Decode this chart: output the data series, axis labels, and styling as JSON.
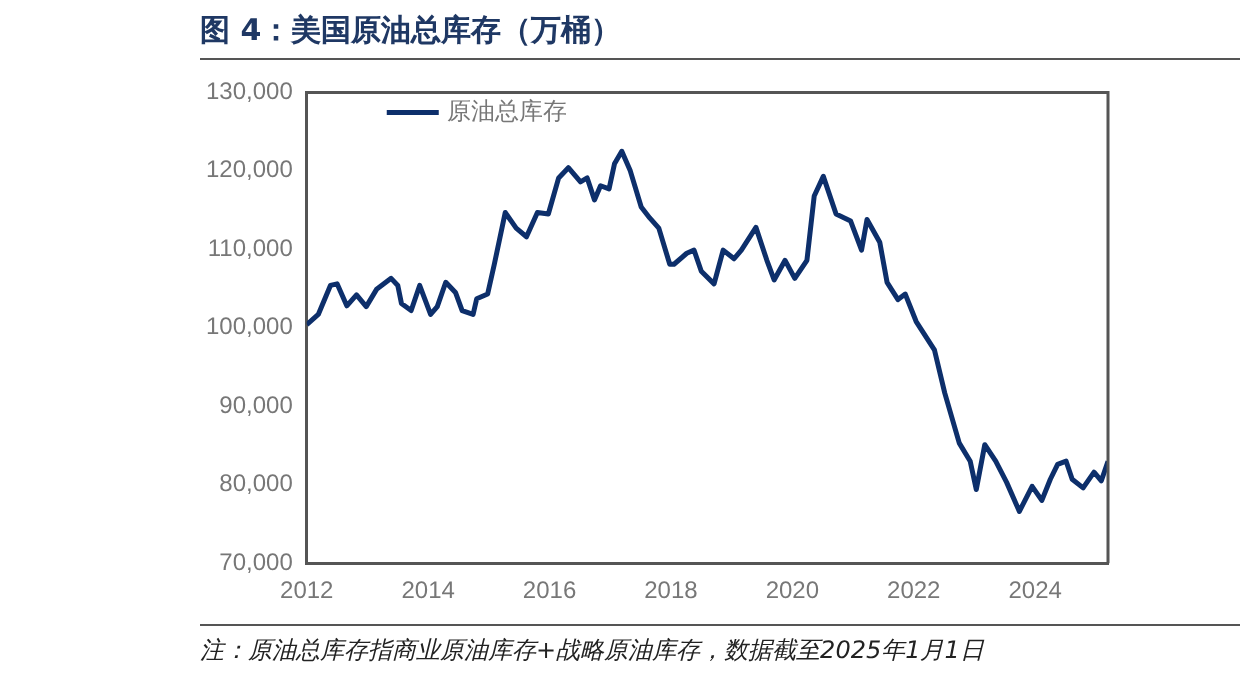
{
  "chart_data": {
    "type": "line",
    "title": "图 4：美国原油总库存（万桶）",
    "annotations": [
      "注：原油总库存指商业原油库存+战略原油库存，数据截至2025年1月1日"
    ],
    "xlim": [
      2012,
      2025.2
    ],
    "xticks": [
      2012,
      2014,
      2016,
      2018,
      2020,
      2022,
      2024
    ],
    "ylim": [
      70000,
      130000
    ],
    "yticks": [
      {
        "value": 70000,
        "label": "70,000"
      },
      {
        "value": 80000,
        "label": "80,000"
      },
      {
        "value": 90000,
        "label": "90,000"
      },
      {
        "value": 100000,
        "label": "100,000"
      },
      {
        "value": 110000,
        "label": "110,000"
      },
      {
        "value": 120000,
        "label": "120,000"
      },
      {
        "value": 130000,
        "label": "130,000"
      }
    ],
    "grid": false,
    "legend": "top left",
    "marker": "none",
    "line_style": "solid",
    "series": [
      {
        "name": "原油总库存",
        "color": "#0d2f6b",
        "x": [
          2012.0,
          2012.19,
          2012.39,
          2012.5,
          2012.66,
          2012.82,
          2012.98,
          2013.15,
          2013.39,
          2013.5,
          2013.56,
          2013.72,
          2013.86,
          2014.04,
          2014.15,
          2014.29,
          2014.45,
          2014.56,
          2014.74,
          2014.8,
          2014.98,
          2015.09,
          2015.27,
          2015.45,
          2015.62,
          2015.8,
          2015.98,
          2016.15,
          2016.31,
          2016.51,
          2016.62,
          2016.74,
          2016.84,
          2016.98,
          2017.07,
          2017.19,
          2017.33,
          2017.51,
          2017.65,
          2017.8,
          2017.98,
          2018.05,
          2018.26,
          2018.38,
          2018.5,
          2018.71,
          2018.86,
          2019.04,
          2019.16,
          2019.4,
          2019.58,
          2019.7,
          2019.88,
          2020.04,
          2020.24,
          2020.36,
          2020.51,
          2020.72,
          2020.96,
          2021.14,
          2021.23,
          2021.44,
          2021.56,
          2021.74,
          2021.86,
          2022.04,
          2022.34,
          2022.51,
          2022.75,
          2022.93,
          2023.03,
          2023.17,
          2023.35,
          2023.53,
          2023.74,
          2023.95,
          2024.11,
          2024.25,
          2024.37,
          2024.51,
          2024.61,
          2024.79,
          2024.97,
          2025.09,
          2025.2
        ],
        "values": [
          100400,
          101700,
          105400,
          105600,
          102800,
          104200,
          102700,
          104900,
          106300,
          105400,
          103100,
          102200,
          105400,
          101700,
          102700,
          105800,
          104500,
          102200,
          101700,
          103700,
          104300,
          108100,
          114700,
          112700,
          111600,
          114700,
          114500,
          119100,
          120400,
          118600,
          119100,
          116300,
          118100,
          117700,
          120900,
          122500,
          120000,
          115400,
          114000,
          112700,
          108100,
          108100,
          109500,
          109900,
          107200,
          105600,
          109900,
          108800,
          109900,
          112800,
          108600,
          106100,
          108600,
          106300,
          108600,
          116800,
          119300,
          114500,
          113600,
          109900,
          113800,
          110900,
          105800,
          103600,
          104300,
          100800,
          97200,
          91700,
          85300,
          83000,
          79400,
          85100,
          83000,
          80300,
          76600,
          79800,
          78000,
          80700,
          82600,
          83000,
          80700,
          79600,
          81600,
          80500,
          83000
        ]
      }
    ]
  }
}
